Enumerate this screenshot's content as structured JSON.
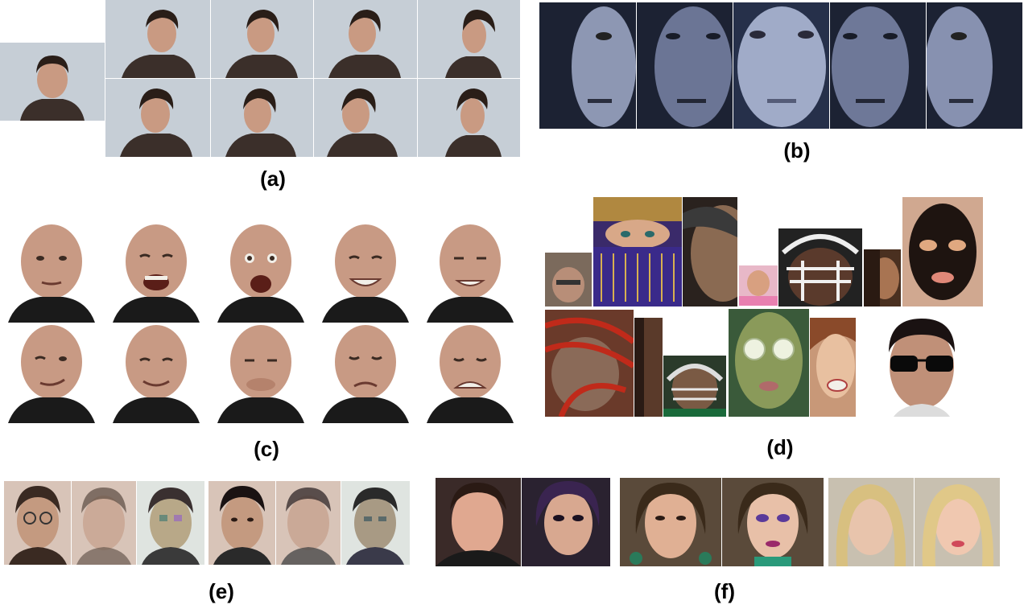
{
  "labels": {
    "a": "(a)",
    "b": "(b)",
    "c": "(c)",
    "d": "(d)",
    "e": "(e)",
    "f": "(f)"
  },
  "colors": {
    "bg_a": "#c9d1d8",
    "bg_b": "#1e2434",
    "bg_c": "#ffffff",
    "skin": "#c99a82",
    "hair_dark": "#2a1e18",
    "shirt_a": "#3b2f2a",
    "shirt_c": "#1a1a1a"
  }
}
